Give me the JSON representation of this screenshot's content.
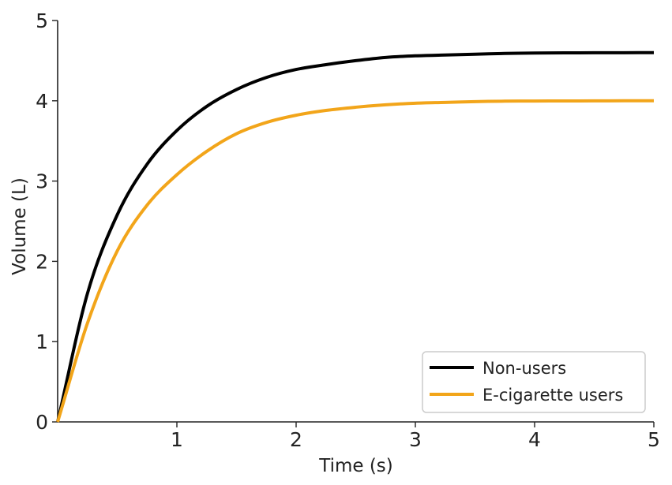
{
  "chart_data": {
    "type": "line",
    "xlabel": "Time (s)",
    "ylabel": "Volume (L)",
    "xlim": [
      0,
      5
    ],
    "ylim": [
      0,
      5
    ],
    "x_ticks": [
      "1",
      "2",
      "3",
      "4",
      "5"
    ],
    "y_ticks": [
      "0",
      "1",
      "2",
      "3",
      "4",
      "5"
    ],
    "grid": false,
    "legend_position": "bottom-right",
    "x": [
      0,
      0.25,
      0.5,
      0.75,
      1,
      1.25,
      1.5,
      1.75,
      2,
      2.25,
      2.5,
      2.75,
      3,
      3.25,
      3.5,
      3.75,
      4,
      4.25,
      4.5,
      4.75,
      5
    ],
    "series": [
      {
        "name": "Non-users",
        "color": "#000000",
        "values": [
          0,
          1.6,
          2.58,
          3.21,
          3.63,
          3.93,
          4.14,
          4.29,
          4.39,
          4.45,
          4.5,
          4.54,
          4.56,
          4.57,
          4.58,
          4.59,
          4.595,
          4.597,
          4.598,
          4.599,
          4.6
        ]
      },
      {
        "name": "E-cigarette users",
        "color": "#f2a51a",
        "values": [
          0,
          1.23,
          2.13,
          2.7,
          3.08,
          3.37,
          3.59,
          3.73,
          3.82,
          3.88,
          3.92,
          3.95,
          3.97,
          3.98,
          3.99,
          3.995,
          3.997,
          3.998,
          3.999,
          4.0,
          4.0
        ]
      }
    ]
  }
}
